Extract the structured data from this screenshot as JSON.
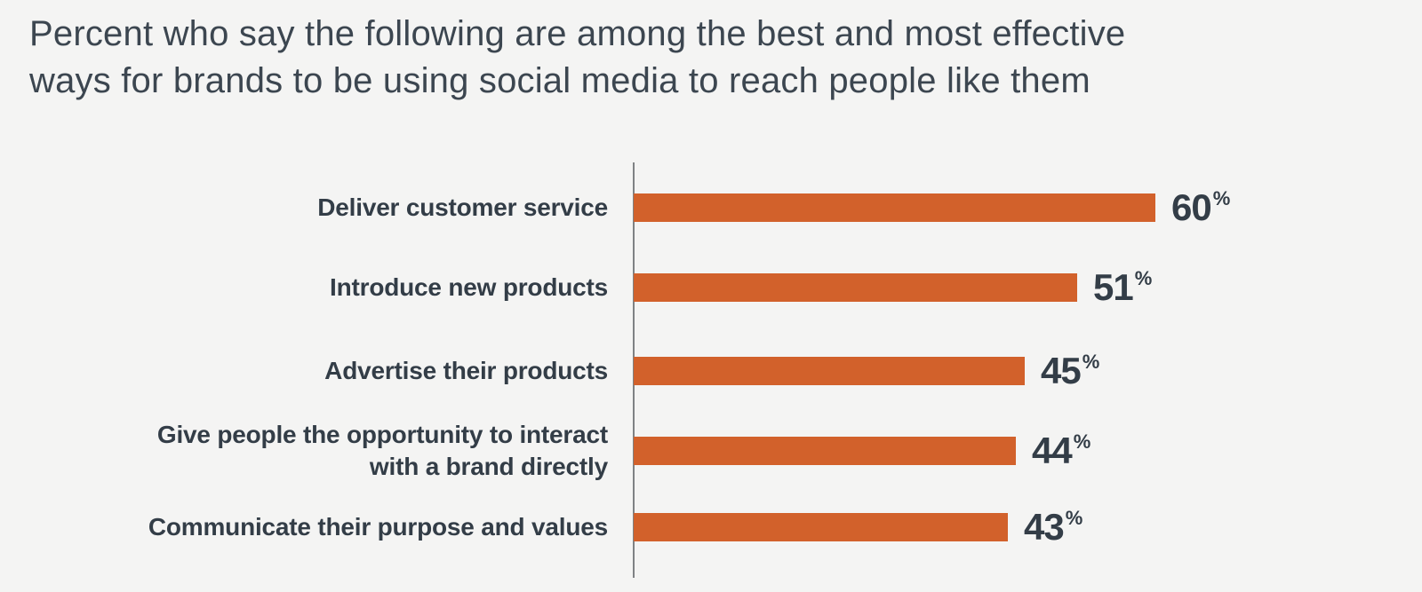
{
  "title_lines": [
    "Percent who say the following are among the best and most effective",
    "ways for brands to be using social media to reach people like them"
  ],
  "colors": {
    "background": "#F4F4F3",
    "bar": "#D2612B",
    "label_text": "#333D47",
    "title_text": "#3C4650",
    "axis": "#7F8284"
  },
  "chart_data": {
    "type": "bar",
    "orientation": "horizontal",
    "title": "Percent who say the following are among the best and most effective ways for brands to be using social media to reach people like them",
    "categories": [
      "Deliver customer service",
      "Introduce new products",
      "Advertise their products",
      "Give people the opportunity to interact with a brand directly",
      "Communicate their purpose and values"
    ],
    "values": [
      60,
      51,
      45,
      44,
      43
    ],
    "value_labels": [
      "60",
      "51",
      "45",
      "44",
      "43"
    ],
    "value_suffix": "%",
    "xlabel": "",
    "ylabel": "",
    "xlim": [
      0,
      60
    ],
    "grid": false,
    "legend": false,
    "bar_color": "#D2612B"
  }
}
